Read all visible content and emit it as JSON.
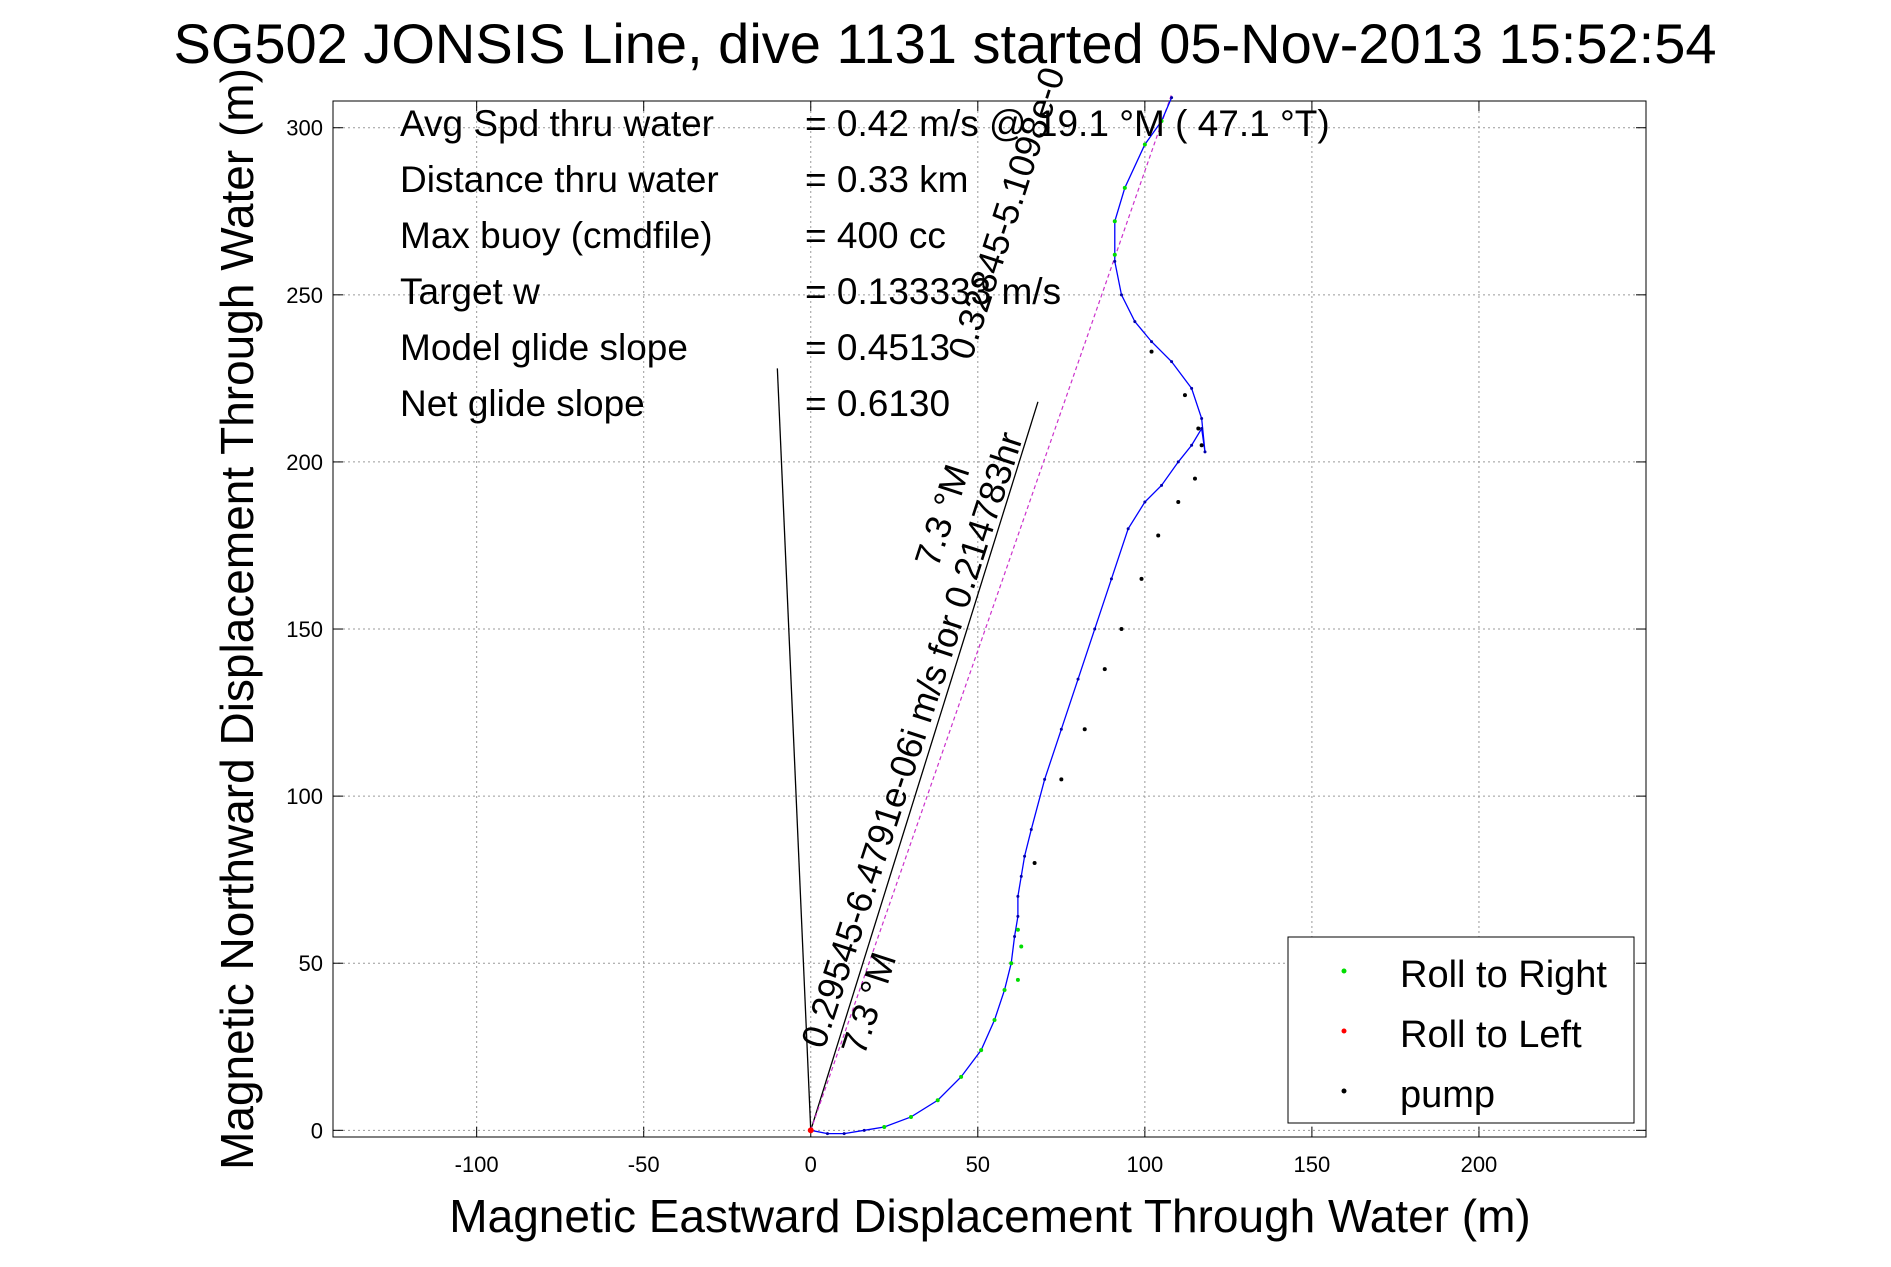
{
  "chart_data": {
    "type": "line",
    "title": "SG502 JONSIS Line, dive 1131 started 05-Nov-2013 15:52:54",
    "xlabel": "Magnetic Eastward Displacement Through Water (m)",
    "ylabel": "Magnetic Northward Displacement Through Water (m)",
    "xlim": [
      -143,
      250
    ],
    "ylim": [
      -2,
      308
    ],
    "xticks": [
      -100,
      -50,
      0,
      50,
      100,
      150,
      200
    ],
    "yticks": [
      0,
      50,
      100,
      150,
      200,
      250,
      300
    ],
    "grid": true,
    "legend_position": "bottom-right",
    "legend": [
      {
        "label": "Roll to Right",
        "color": "#00dd00"
      },
      {
        "label": "Roll to Left",
        "color": "#ff0000"
      },
      {
        "label": "pump",
        "color": "#000000"
      }
    ],
    "stats": [
      {
        "label": "Avg Spd thru water",
        "value": "=  0.42 m/s @  19.1 °M ( 47.1 °T)"
      },
      {
        "label": "Distance thru water",
        "value": "=  0.33 km"
      },
      {
        "label": "Max buoy (cmdfile)",
        "value": "= 400 cc"
      },
      {
        "label": "Target w",
        "value": "= 0.133333 m/s"
      },
      {
        "label": "Model glide slope",
        "value": "= 0.4513"
      },
      {
        "label": "Net glide slope",
        "value": "= 0.6130"
      }
    ],
    "series": [
      {
        "color": "#0000ff",
        "x": [
          0,
          5,
          10,
          16,
          22,
          30,
          38,
          45,
          51,
          55,
          58,
          60,
          61,
          62,
          62,
          63,
          64,
          66,
          70,
          75,
          80,
          85,
          90,
          95,
          100,
          105,
          110,
          114,
          117,
          118,
          117,
          114,
          108,
          102,
          97,
          93,
          91,
          91,
          94,
          100,
          105,
          108
        ],
        "y": [
          0,
          -1,
          -1,
          0,
          1,
          4,
          9,
          16,
          24,
          33,
          42,
          50,
          58,
          64,
          70,
          76,
          82,
          90,
          105,
          120,
          135,
          150,
          165,
          180,
          188,
          193,
          200,
          205,
          210,
          203,
          213,
          222,
          230,
          236,
          242,
          250,
          260,
          272,
          282,
          295,
          302,
          309
        ]
      },
      {
        "color": "#00dd00",
        "x": [
          22,
          30,
          38,
          45,
          51,
          55,
          58,
          60,
          62,
          63,
          62,
          91,
          91,
          94,
          100,
          105
        ],
        "y": [
          1,
          4,
          9,
          16,
          24,
          33,
          42,
          50,
          60,
          55,
          45,
          262,
          272,
          282,
          295,
          302
        ]
      },
      {
        "color": "#000000",
        "x": [
          67,
          75,
          82,
          88,
          93,
          99,
          104,
          110,
          115,
          117,
          116,
          112,
          102
        ],
        "y": [
          80,
          105,
          120,
          138,
          150,
          165,
          178,
          188,
          195,
          205,
          210,
          220,
          233
        ]
      },
      {
        "color": "#ff0000",
        "x": [
          0
        ],
        "y": [
          0
        ]
      }
    ],
    "reference_lines": [
      {
        "color": "#000000",
        "x": [
          0,
          -10
        ],
        "y": [
          0,
          228
        ],
        "label": ""
      },
      {
        "color": "#000000",
        "x": [
          0,
          68
        ],
        "y": [
          0,
          218
        ],
        "label": ""
      },
      {
        "color": "#cc33cc",
        "x": [
          0,
          108
        ],
        "y": [
          0,
          310
        ],
        "label": ""
      }
    ],
    "annotations": [
      {
        "text": "0.29545-6.4791e-06i m/s for 0.214783hr",
        "x": 4,
        "y": 24,
        "rotation": -72
      },
      {
        "text": "7.3 °M",
        "x": 16,
        "y": 22,
        "rotation": -72
      },
      {
        "text": "0.32845-5.1098e-0",
        "x": 48,
        "y": 230,
        "rotation": -72
      },
      {
        "text": "7.3 °M",
        "x": 38,
        "y": 168,
        "rotation": -72
      }
    ]
  }
}
